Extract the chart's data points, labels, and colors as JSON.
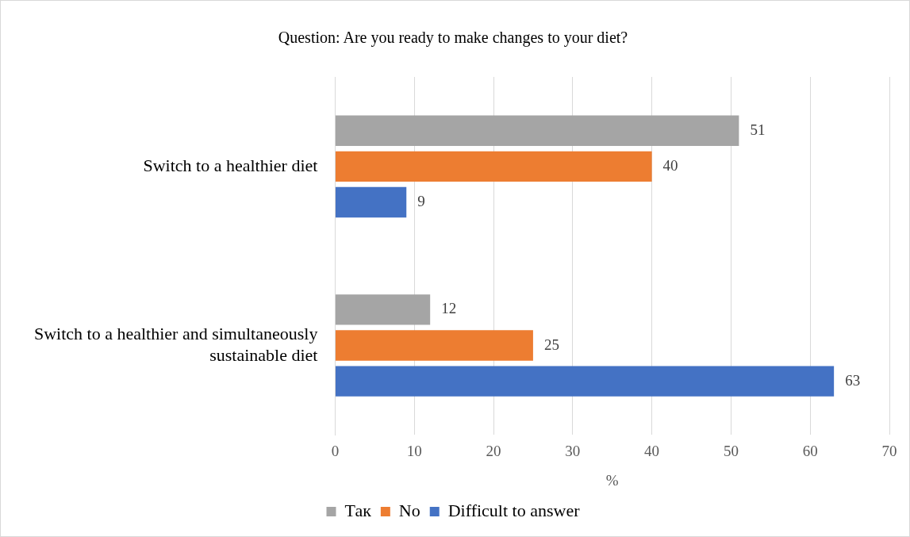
{
  "chart_data": {
    "type": "bar",
    "orientation": "horizontal",
    "title": "Question: Are you ready to make changes to your diet?",
    "xlabel": "%",
    "categories": [
      "Switch to a healthier diet",
      "Switch to a healthier and simultaneously sustainable diet"
    ],
    "series": [
      {
        "name": "Так",
        "color": "#a5a5a5",
        "values": [
          51,
          12
        ]
      },
      {
        "name": "No",
        "color": "#ed7d31",
        "values": [
          40,
          25
        ]
      },
      {
        "name": "Difficult to answer",
        "color": "#4472c4",
        "values": [
          9,
          63
        ]
      }
    ],
    "xlim": [
      0,
      70
    ],
    "xticks": [
      0,
      10,
      20,
      30,
      40,
      50,
      60,
      70
    ],
    "grid": "x",
    "legend": "bottom",
    "data_labels": true
  }
}
